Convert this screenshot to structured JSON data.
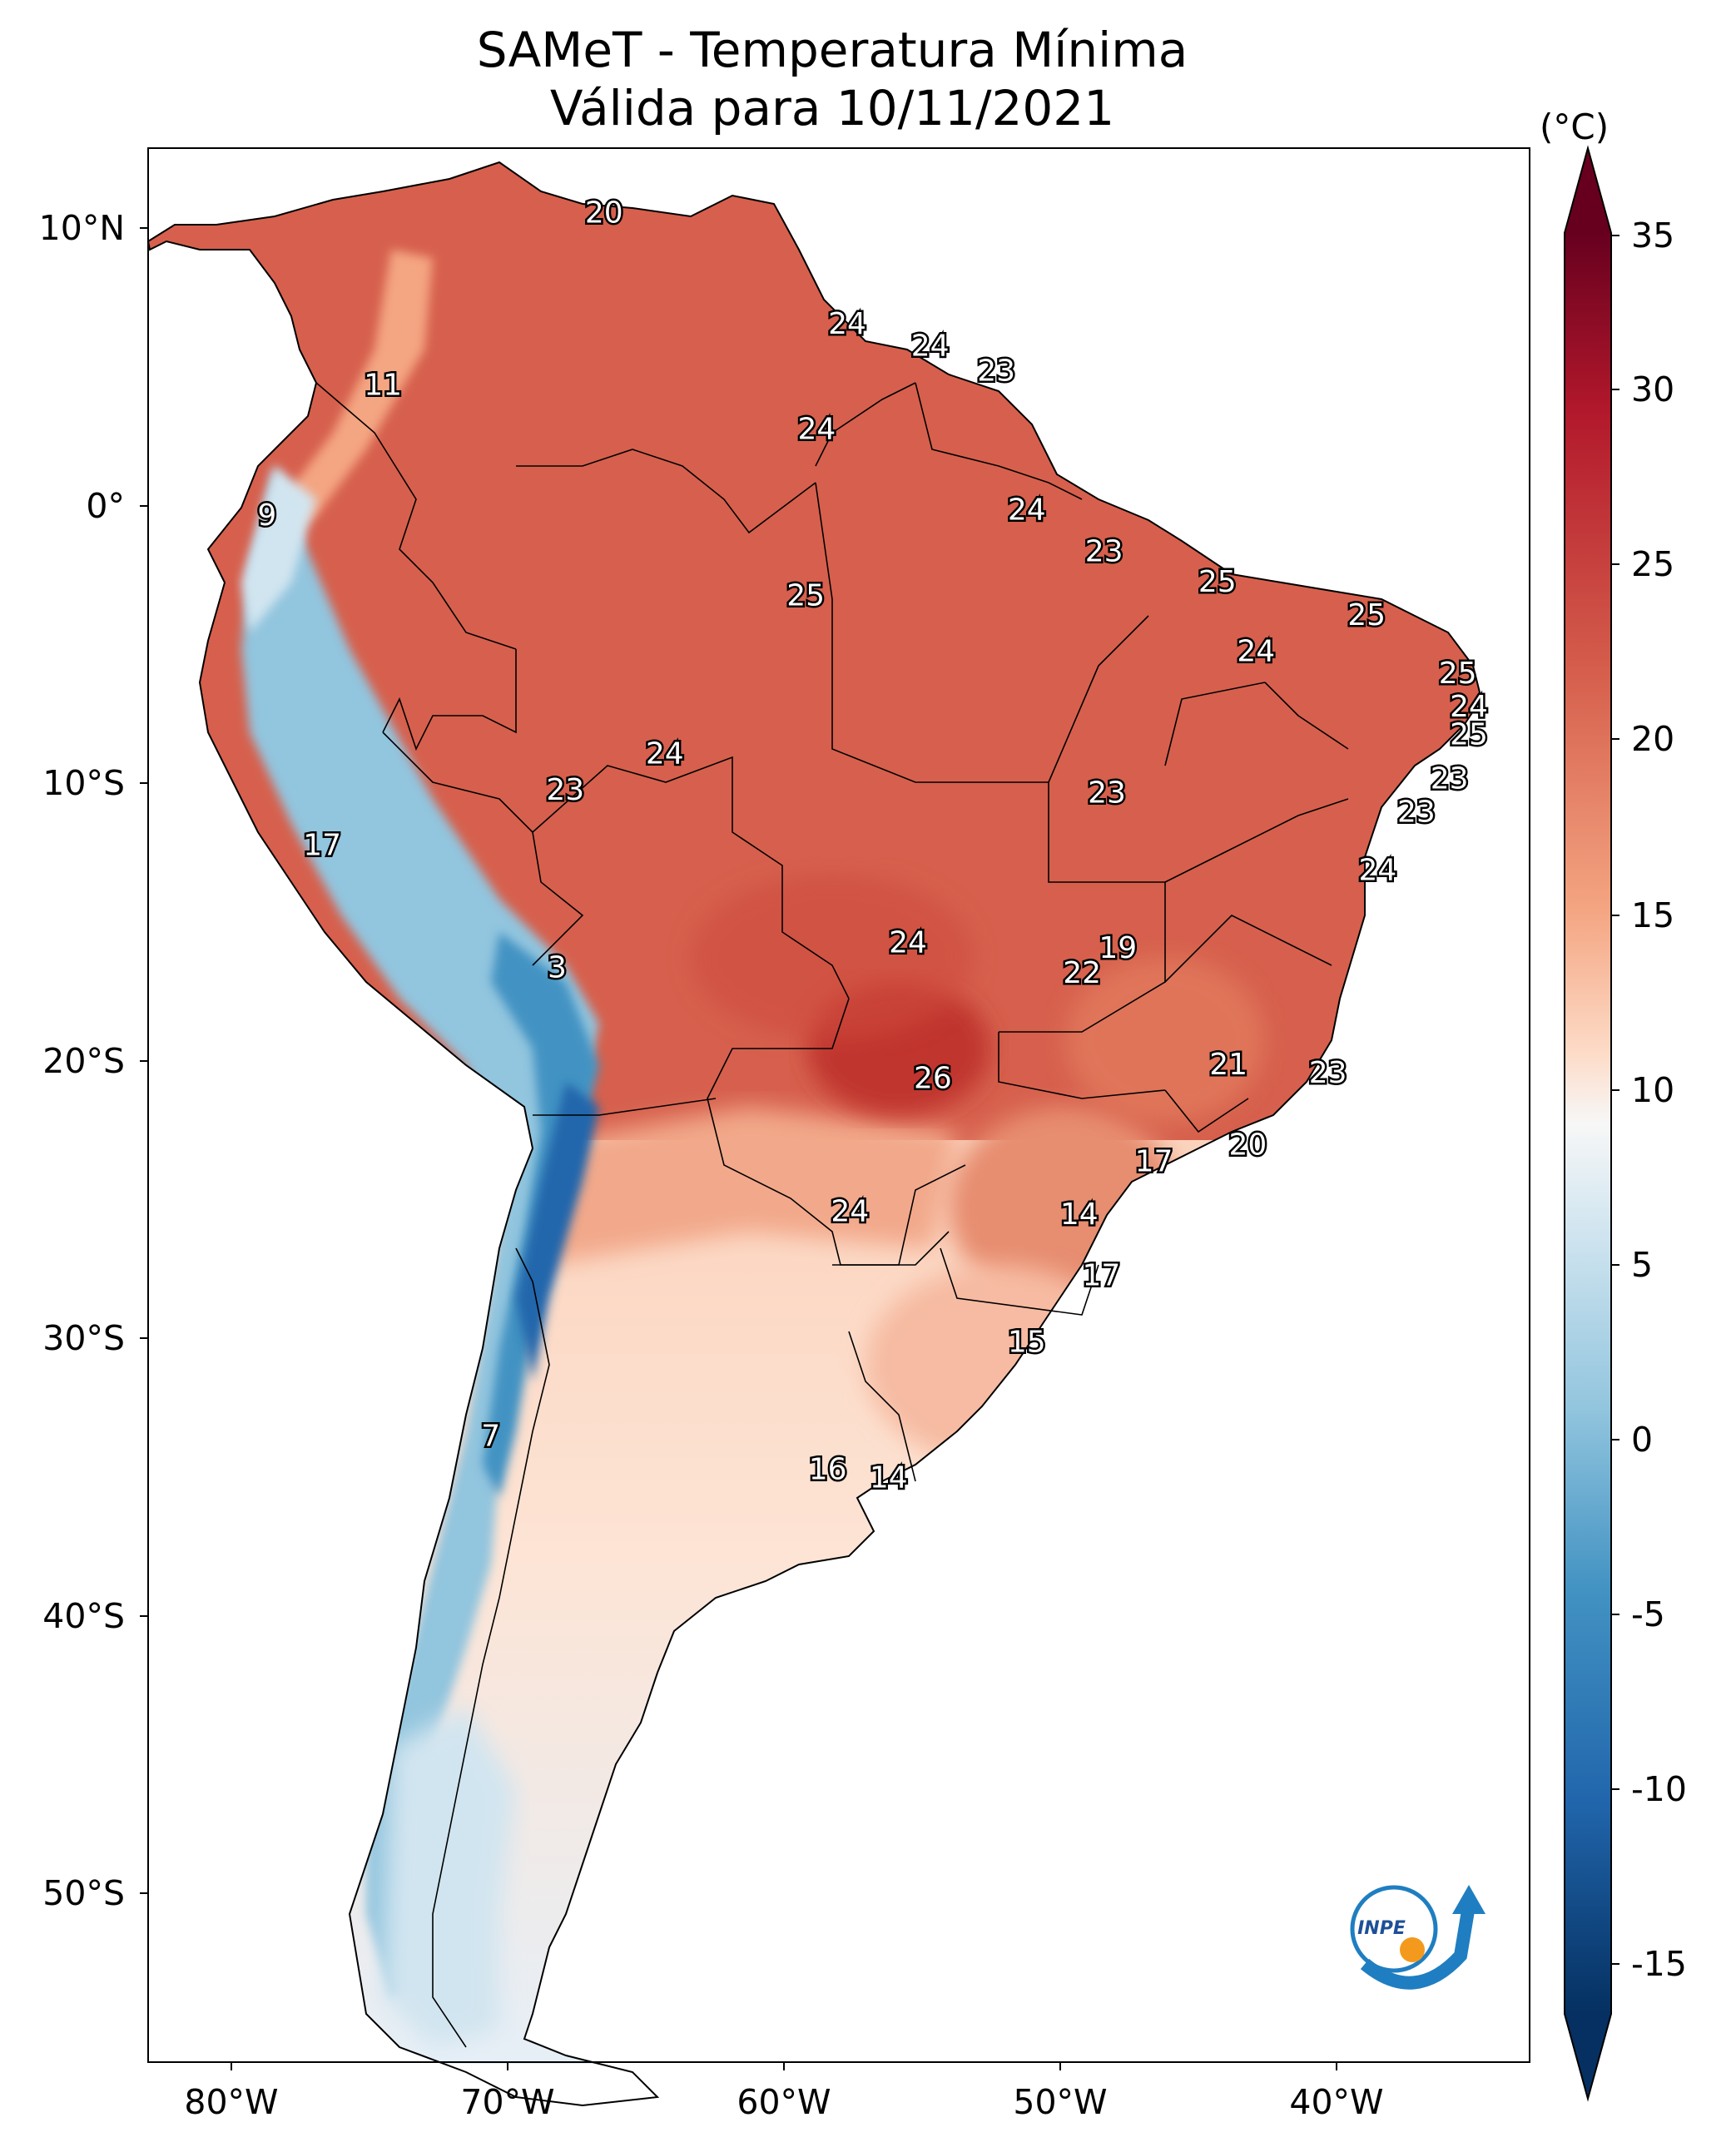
{
  "title": "SAMeT - Temperatura Mínima",
  "subtitle": "Válida para 10/11/2021",
  "colorbar": {
    "unit": "(°C)",
    "ticks": [
      "35",
      "30",
      "25",
      "20",
      "15",
      "10",
      "5",
      "0",
      "-5",
      "-10",
      "-15"
    ],
    "range": [
      -15,
      35
    ],
    "colormap": [
      "#053061",
      "#2166ac",
      "#4393c3",
      "#92c5de",
      "#d1e5f0",
      "#f7f7f7",
      "#fddbc7",
      "#f4a582",
      "#d6604d",
      "#b2182b",
      "#67001f"
    ]
  },
  "axes": {
    "lat_labels": [
      "10°N",
      "0°",
      "10°S",
      "20°S",
      "30°S",
      "40°S",
      "50°S"
    ],
    "lon_labels": [
      "80°W",
      "70°W",
      "60°W",
      "50°W",
      "40°W"
    ]
  },
  "colors": {
    "land_base": "#d6604d",
    "ocean": "#ffffff",
    "border": "#000000"
  },
  "logo": {
    "name": "inpe-logo",
    "text": "INPE"
  },
  "chart_data": {
    "type": "heatmap",
    "title": "SAMeT - Temperatura Mínima",
    "subtitle": "Válida para 10/11/2021",
    "variable": "Temperatura Mínima",
    "unit": "°C",
    "lon_range": [
      -83,
      -33
    ],
    "lat_range": [
      -56,
      13
    ],
    "station_values": [
      {
        "label": "20",
        "lon": -66.5,
        "lat": 10.7
      },
      {
        "label": "24",
        "lon": -57.7,
        "lat": 6.7
      },
      {
        "label": "24",
        "lon": -54.7,
        "lat": 5.9
      },
      {
        "label": "23",
        "lon": -52.3,
        "lat": 5.0
      },
      {
        "label": "11",
        "lon": -74.5,
        "lat": 4.5
      },
      {
        "label": "24",
        "lon": -58.8,
        "lat": 2.9
      },
      {
        "label": "9",
        "lon": -78.7,
        "lat": -0.2
      },
      {
        "label": "24",
        "lon": -51.2,
        "lat": 0.0
      },
      {
        "label": "23",
        "lon": -48.4,
        "lat": -1.5
      },
      {
        "label": "25",
        "lon": -59.2,
        "lat": -3.1
      },
      {
        "label": "25",
        "lon": -44.3,
        "lat": -2.6
      },
      {
        "label": "25",
        "lon": -38.9,
        "lat": -3.8
      },
      {
        "label": "24",
        "lon": -42.9,
        "lat": -5.1
      },
      {
        "label": "25",
        "lon": -35.6,
        "lat": -5.9
      },
      {
        "label": "24",
        "lon": -35.2,
        "lat": -7.1
      },
      {
        "label": "25",
        "lon": -35.2,
        "lat": -8.1
      },
      {
        "label": "24",
        "lon": -64.3,
        "lat": -8.8
      },
      {
        "label": "23",
        "lon": -67.9,
        "lat": -10.1
      },
      {
        "label": "23",
        "lon": -48.3,
        "lat": -10.2
      },
      {
        "label": "23",
        "lon": -35.9,
        "lat": -9.7
      },
      {
        "label": "23",
        "lon": -37.1,
        "lat": -10.9
      },
      {
        "label": "17",
        "lon": -76.7,
        "lat": -12.1
      },
      {
        "label": "24",
        "lon": -38.5,
        "lat": -13.0
      },
      {
        "label": "24",
        "lon": -55.5,
        "lat": -15.6
      },
      {
        "label": "19",
        "lon": -47.9,
        "lat": -15.8
      },
      {
        "label": "22",
        "lon": -49.2,
        "lat": -16.7
      },
      {
        "label": "3",
        "lon": -68.2,
        "lat": -16.5
      },
      {
        "label": "21",
        "lon": -43.9,
        "lat": -20.0
      },
      {
        "label": "23",
        "lon": -40.3,
        "lat": -20.3
      },
      {
        "label": "26",
        "lon": -54.6,
        "lat": -20.5
      },
      {
        "label": "20",
        "lon": -43.2,
        "lat": -22.9
      },
      {
        "label": "17",
        "lon": -46.6,
        "lat": -23.5
      },
      {
        "label": "24",
        "lon": -57.6,
        "lat": -25.3
      },
      {
        "label": "14",
        "lon": -49.3,
        "lat": -25.4
      },
      {
        "label": "17",
        "lon": -48.5,
        "lat": -27.6
      },
      {
        "label": "15",
        "lon": -51.2,
        "lat": -30.0
      },
      {
        "label": "7",
        "lon": -70.6,
        "lat": -33.4
      },
      {
        "label": "16",
        "lon": -58.4,
        "lat": -34.6
      },
      {
        "label": "14",
        "lon": -56.2,
        "lat": -34.9
      }
    ]
  }
}
